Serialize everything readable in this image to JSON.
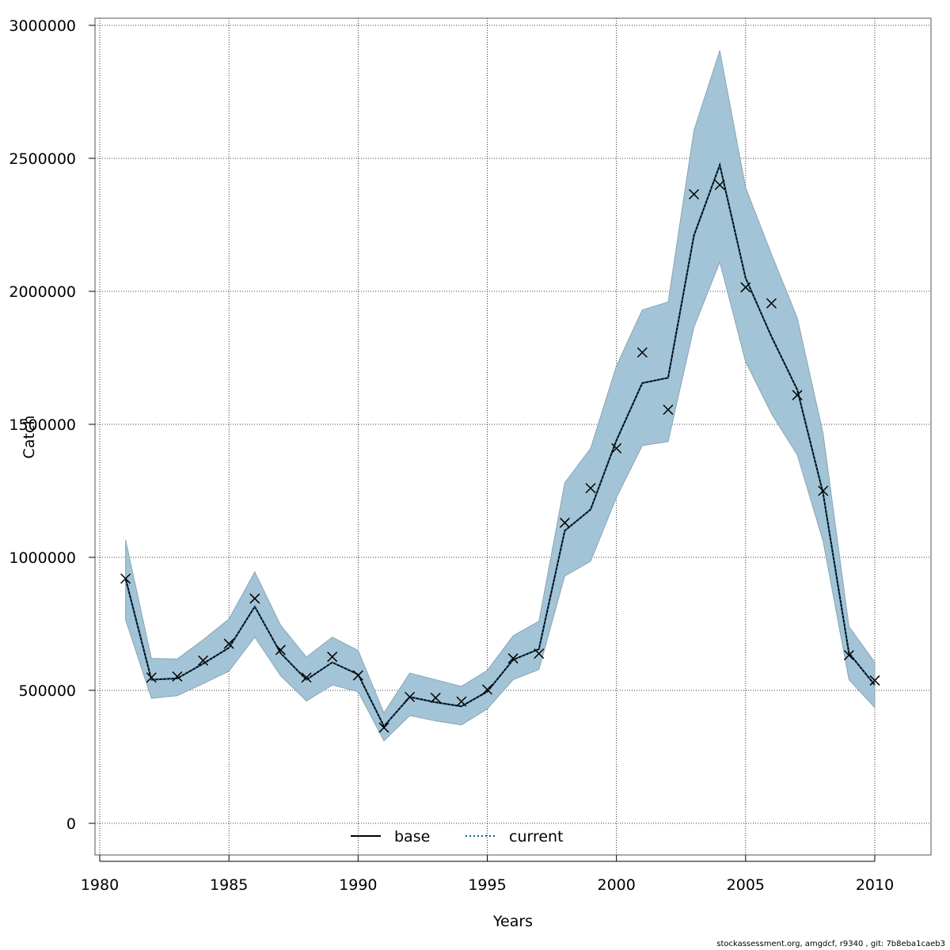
{
  "chart_data": {
    "type": "line",
    "xlabel": "Years",
    "ylabel": "Catch",
    "xlim": [
      1980,
      2012
    ],
    "ylim": [
      0,
      3000000
    ],
    "xticks": [
      "1980",
      "1985",
      "1990",
      "1995",
      "2000",
      "2005",
      "2010"
    ],
    "yticks": [
      "0",
      "500000",
      "1000000",
      "1500000",
      "2000000",
      "2500000",
      "3000000"
    ],
    "grid": true,
    "legend_position": "bottom-center",
    "x": [
      1981,
      1982,
      1983,
      1984,
      1985,
      1986,
      1987,
      1988,
      1989,
      1990,
      1991,
      1992,
      1993,
      1994,
      1995,
      1996,
      1997,
      1998,
      1999,
      2000,
      2001,
      2002,
      2003,
      2004,
      2005,
      2006,
      2007,
      2008,
      2009,
      2010
    ],
    "series": [
      {
        "name": "base",
        "style": "solid",
        "color": "#000000",
        "values": [
          920000,
          540000,
          545000,
          600000,
          660000,
          815000,
          640000,
          540000,
          605000,
          560000,
          365000,
          475000,
          455000,
          440000,
          495000,
          615000,
          655000,
          1100000,
          1180000,
          1440000,
          1655000,
          1675000,
          2210000,
          2475000,
          2050000,
          1830000,
          1630000,
          1240000,
          640000,
          520000
        ]
      },
      {
        "name": "current",
        "style": "dotted",
        "color": "#1f5f8b",
        "values": [
          920000,
          540000,
          545000,
          600000,
          660000,
          815000,
          640000,
          540000,
          605000,
          560000,
          365000,
          475000,
          455000,
          440000,
          495000,
          615000,
          655000,
          1100000,
          1180000,
          1440000,
          1655000,
          1675000,
          2210000,
          2475000,
          2050000,
          1830000,
          1630000,
          1240000,
          640000,
          520000
        ]
      }
    ],
    "confidence_band": {
      "color": "#a3c4d6",
      "upper": [
        1065000,
        620000,
        618000,
        690000,
        768000,
        945000,
        745000,
        625000,
        700000,
        650000,
        415000,
        565000,
        540000,
        515000,
        575000,
        705000,
        760000,
        1280000,
        1410000,
        1720000,
        1930000,
        1960000,
        2605000,
        2905000,
        2390000,
        2140000,
        1900000,
        1465000,
        740000,
        605000
      ],
      "lower": [
        765000,
        470000,
        480000,
        525000,
        572000,
        700000,
        555000,
        460000,
        520000,
        495000,
        310000,
        405000,
        385000,
        370000,
        430000,
        540000,
        578000,
        930000,
        985000,
        1225000,
        1420000,
        1435000,
        1865000,
        2110000,
        1735000,
        1540000,
        1385000,
        1060000,
        540000,
        435000
      ]
    },
    "observed": {
      "marker": "x",
      "values": [
        920000,
        548000,
        552000,
        612000,
        675000,
        845000,
        652000,
        548000,
        626000,
        556000,
        360000,
        475000,
        472000,
        458000,
        503000,
        620000,
        638000,
        1130000,
        1260000,
        1410000,
        1770000,
        1555000,
        2365000,
        2400000,
        2015000,
        1955000,
        1610000,
        1250000,
        632000,
        537000
      ]
    }
  },
  "footer": {
    "note": "stockassessment.org, amgdcf, r9340 , git: 7b8eba1caeb3"
  }
}
